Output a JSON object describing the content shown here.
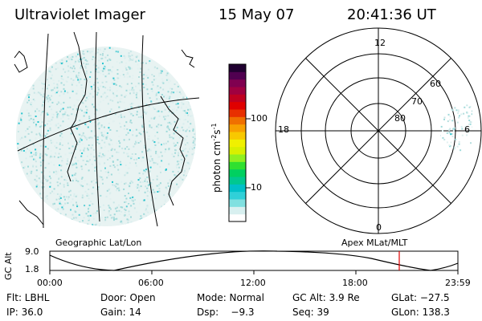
{
  "header": {
    "title": "Ultraviolet Imager",
    "date": "15 May 07",
    "time": "20:41:36 UT"
  },
  "colorbar": {
    "label": "photon cm",
    "label_exp1": "-2",
    "label_mid": "s",
    "label_exp2": "-1",
    "ticks": [
      "100",
      "10"
    ],
    "colors": [
      "#ffffff",
      "#d8f0f0",
      "#80e0e0",
      "#30d0d8",
      "#00c0c8",
      "#00c890",
      "#00d060",
      "#30e030",
      "#90f020",
      "#d8f000",
      "#f0f000",
      "#f8c800",
      "#f8a000",
      "#f07000",
      "#e83000",
      "#e00000",
      "#c00020",
      "#a00040",
      "#800050",
      "#500050",
      "#200030"
    ]
  },
  "left_panel": {
    "label": "Geographic Lat/Lon"
  },
  "polar_plot": {
    "label": "Apex MLat/MLT",
    "mlt_labels": {
      "top": "12",
      "left": "18",
      "right": "6",
      "bottom": "0"
    },
    "lat_labels": [
      "60",
      "70",
      "80"
    ]
  },
  "altitude_strip": {
    "ylabel": "GC Alt",
    "ymax": "9.0",
    "ymin": "1.8",
    "xticks": [
      "00:00",
      "06:00",
      "12:00",
      "18:00",
      "23:59"
    ],
    "marker_color": "#e00000"
  },
  "info": {
    "row1": {
      "flt": "Flt: LBHL",
      "door": "Door: Open",
      "mode": "Mode: Normal",
      "gcalt": "GC Alt: 3.9 Re",
      "glat": "GLat: −27.5"
    },
    "row2": {
      "ip": "IP: 36.0",
      "gain": "Gain: 14",
      "dsp": "Dsp:    −9.3",
      "seq": "Seq: 39",
      "glon": "GLon: 138.3"
    }
  }
}
